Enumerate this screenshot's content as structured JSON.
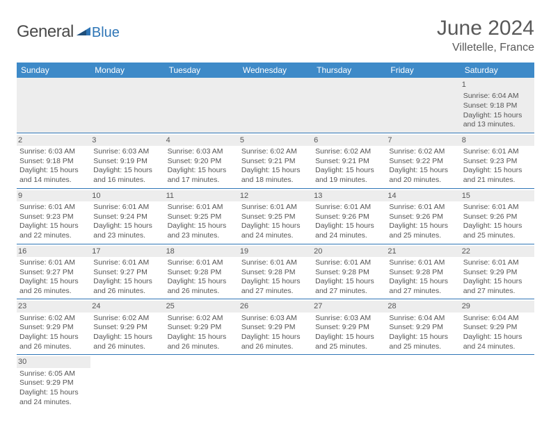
{
  "logo": {
    "general": "General",
    "blue": "Blue"
  },
  "title": {
    "month": "June 2024",
    "location": "Villetelle, France"
  },
  "colors": {
    "header_bg": "#3e8ac8",
    "header_text": "#ffffff",
    "daynum_bg": "#ededed",
    "border": "#2e75b6",
    "text": "#555555",
    "title_text": "#595959",
    "logo_blue": "#2e75b6"
  },
  "weekdays": [
    "Sunday",
    "Monday",
    "Tuesday",
    "Wednesday",
    "Thursday",
    "Friday",
    "Saturday"
  ],
  "leading_empty": 6,
  "days": [
    {
      "n": 1,
      "sr": "6:04 AM",
      "ss": "9:18 PM",
      "dl": "15 hours and 13 minutes."
    },
    {
      "n": 2,
      "sr": "6:03 AM",
      "ss": "9:18 PM",
      "dl": "15 hours and 14 minutes."
    },
    {
      "n": 3,
      "sr": "6:03 AM",
      "ss": "9:19 PM",
      "dl": "15 hours and 16 minutes."
    },
    {
      "n": 4,
      "sr": "6:03 AM",
      "ss": "9:20 PM",
      "dl": "15 hours and 17 minutes."
    },
    {
      "n": 5,
      "sr": "6:02 AM",
      "ss": "9:21 PM",
      "dl": "15 hours and 18 minutes."
    },
    {
      "n": 6,
      "sr": "6:02 AM",
      "ss": "9:21 PM",
      "dl": "15 hours and 19 minutes."
    },
    {
      "n": 7,
      "sr": "6:02 AM",
      "ss": "9:22 PM",
      "dl": "15 hours and 20 minutes."
    },
    {
      "n": 8,
      "sr": "6:01 AM",
      "ss": "9:23 PM",
      "dl": "15 hours and 21 minutes."
    },
    {
      "n": 9,
      "sr": "6:01 AM",
      "ss": "9:23 PM",
      "dl": "15 hours and 22 minutes."
    },
    {
      "n": 10,
      "sr": "6:01 AM",
      "ss": "9:24 PM",
      "dl": "15 hours and 23 minutes."
    },
    {
      "n": 11,
      "sr": "6:01 AM",
      "ss": "9:25 PM",
      "dl": "15 hours and 23 minutes."
    },
    {
      "n": 12,
      "sr": "6:01 AM",
      "ss": "9:25 PM",
      "dl": "15 hours and 24 minutes."
    },
    {
      "n": 13,
      "sr": "6:01 AM",
      "ss": "9:26 PM",
      "dl": "15 hours and 24 minutes."
    },
    {
      "n": 14,
      "sr": "6:01 AM",
      "ss": "9:26 PM",
      "dl": "15 hours and 25 minutes."
    },
    {
      "n": 15,
      "sr": "6:01 AM",
      "ss": "9:26 PM",
      "dl": "15 hours and 25 minutes."
    },
    {
      "n": 16,
      "sr": "6:01 AM",
      "ss": "9:27 PM",
      "dl": "15 hours and 26 minutes."
    },
    {
      "n": 17,
      "sr": "6:01 AM",
      "ss": "9:27 PM",
      "dl": "15 hours and 26 minutes."
    },
    {
      "n": 18,
      "sr": "6:01 AM",
      "ss": "9:28 PM",
      "dl": "15 hours and 26 minutes."
    },
    {
      "n": 19,
      "sr": "6:01 AM",
      "ss": "9:28 PM",
      "dl": "15 hours and 27 minutes."
    },
    {
      "n": 20,
      "sr": "6:01 AM",
      "ss": "9:28 PM",
      "dl": "15 hours and 27 minutes."
    },
    {
      "n": 21,
      "sr": "6:01 AM",
      "ss": "9:28 PM",
      "dl": "15 hours and 27 minutes."
    },
    {
      "n": 22,
      "sr": "6:01 AM",
      "ss": "9:29 PM",
      "dl": "15 hours and 27 minutes."
    },
    {
      "n": 23,
      "sr": "6:02 AM",
      "ss": "9:29 PM",
      "dl": "15 hours and 26 minutes."
    },
    {
      "n": 24,
      "sr": "6:02 AM",
      "ss": "9:29 PM",
      "dl": "15 hours and 26 minutes."
    },
    {
      "n": 25,
      "sr": "6:02 AM",
      "ss": "9:29 PM",
      "dl": "15 hours and 26 minutes."
    },
    {
      "n": 26,
      "sr": "6:03 AM",
      "ss": "9:29 PM",
      "dl": "15 hours and 26 minutes."
    },
    {
      "n": 27,
      "sr": "6:03 AM",
      "ss": "9:29 PM",
      "dl": "15 hours and 25 minutes."
    },
    {
      "n": 28,
      "sr": "6:04 AM",
      "ss": "9:29 PM",
      "dl": "15 hours and 25 minutes."
    },
    {
      "n": 29,
      "sr": "6:04 AM",
      "ss": "9:29 PM",
      "dl": "15 hours and 24 minutes."
    },
    {
      "n": 30,
      "sr": "6:05 AM",
      "ss": "9:29 PM",
      "dl": "15 hours and 24 minutes."
    }
  ],
  "labels": {
    "sunrise": "Sunrise:",
    "sunset": "Sunset:",
    "daylight": "Daylight:"
  }
}
